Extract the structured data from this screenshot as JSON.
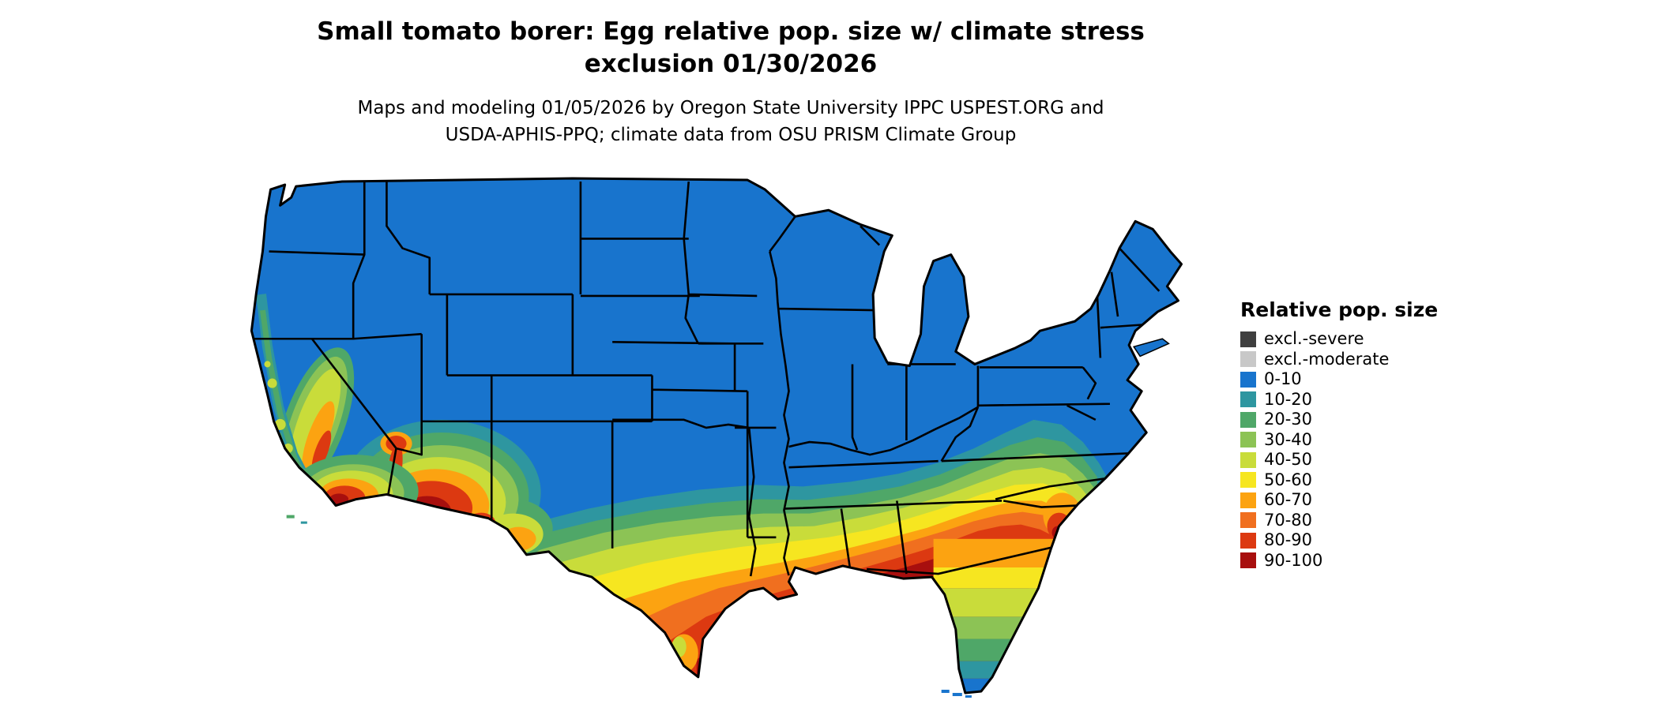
{
  "title": {
    "line1": "Small tomato borer: Egg relative pop. size w/ climate stress",
    "line2": "exclusion 01/30/2026"
  },
  "subtitle": {
    "line1": "Maps and modeling 01/05/2026 by Oregon State University IPPC USPEST.ORG and",
    "line2": "USDA-APHIS-PPQ; climate data from OSU PRISM Climate Group"
  },
  "legend": {
    "title": "Relative pop. size",
    "items": [
      {
        "label": "excl.-severe",
        "color": "#3F3F3F"
      },
      {
        "label": "excl.-moderate",
        "color": "#C8C8C8"
      },
      {
        "label": "0-10",
        "color": "#1874CD"
      },
      {
        "label": "10-20",
        "color": "#2E96A0"
      },
      {
        "label": "20-30",
        "color": "#4FA768"
      },
      {
        "label": "30-40",
        "color": "#8CC355"
      },
      {
        "label": "40-50",
        "color": "#C9DC3A"
      },
      {
        "label": "50-60",
        "color": "#F6E620"
      },
      {
        "label": "60-70",
        "color": "#FCA311"
      },
      {
        "label": "70-80",
        "color": "#F06F1F"
      },
      {
        "label": "80-90",
        "color": "#DC3911"
      },
      {
        "label": "90-100",
        "color": "#A80F0E"
      }
    ]
  }
}
